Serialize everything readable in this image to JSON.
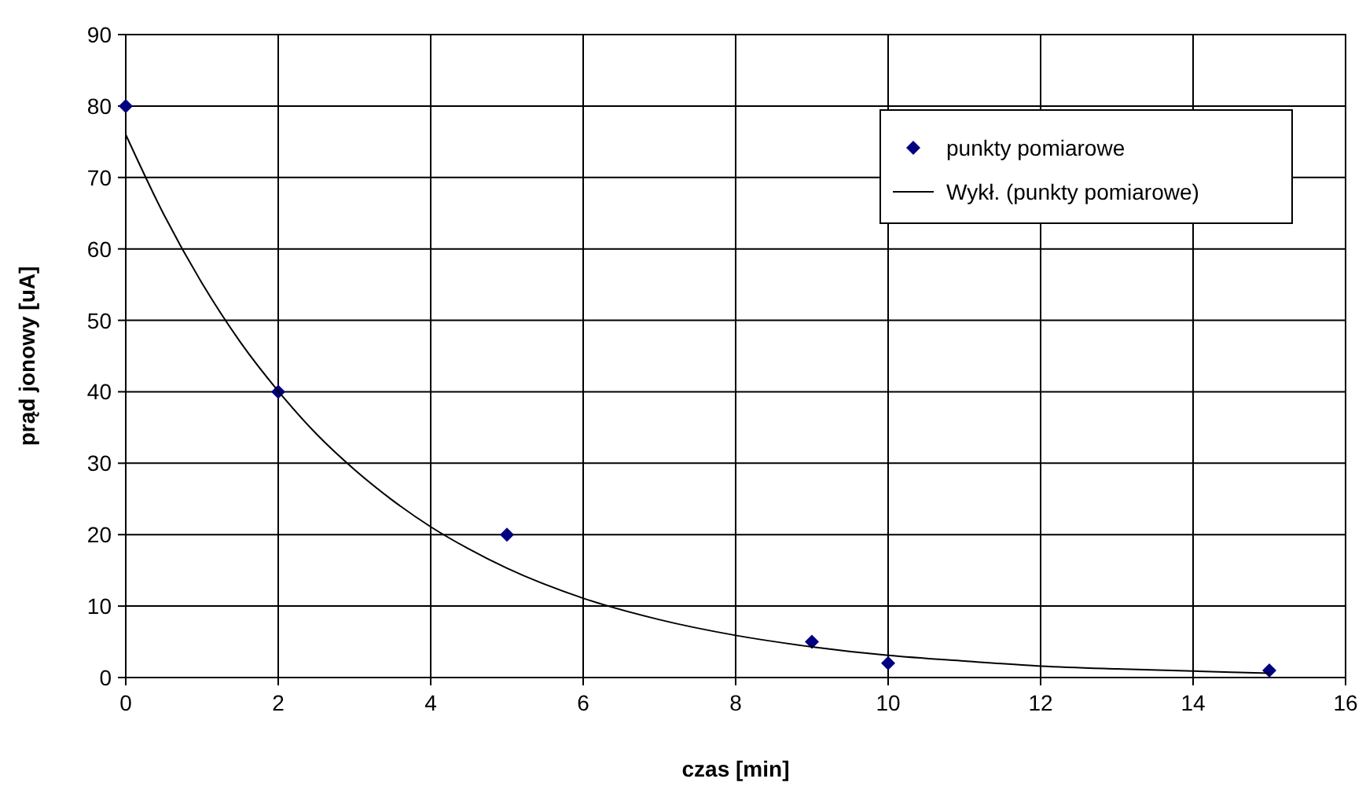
{
  "chart_data": {
    "type": "scatter",
    "xlabel": "czas [min]",
    "ylabel": "prąd jonowy [uA]",
    "x": [
      0,
      2,
      5,
      9,
      10,
      15
    ],
    "series": [
      {
        "name": "punkty pomiarowe",
        "type": "scatter",
        "color": "#000080",
        "marker": "diamond",
        "values": [
          80,
          40,
          20,
          5,
          2,
          1
        ]
      },
      {
        "name": "Wykł. (punkty pomiarowe)",
        "type": "line",
        "color": "#000000",
        "marker": "none",
        "line_style": "solid",
        "x": [
          0,
          0.5,
          1,
          1.5,
          2,
          2.5,
          3,
          3.5,
          4,
          4.5,
          5,
          6,
          7,
          8,
          9,
          10,
          11,
          12,
          13,
          14,
          15
        ],
        "values": [
          76,
          64.8,
          55.2,
          47,
          40.1,
          34.1,
          29.1,
          24.8,
          21.1,
          18,
          15.3,
          11.1,
          8.1,
          5.9,
          4.3,
          3.1,
          2.3,
          1.6,
          1.2,
          0.9,
          0.6
        ]
      }
    ],
    "xlim": [
      0,
      16
    ],
    "xticks": [
      0,
      2,
      4,
      6,
      8,
      10,
      12,
      14,
      16
    ],
    "ylim": [
      0,
      90
    ],
    "yticks": [
      0,
      10,
      20,
      30,
      40,
      50,
      60,
      70,
      80,
      90
    ],
    "grid": true,
    "legend": "top right"
  }
}
